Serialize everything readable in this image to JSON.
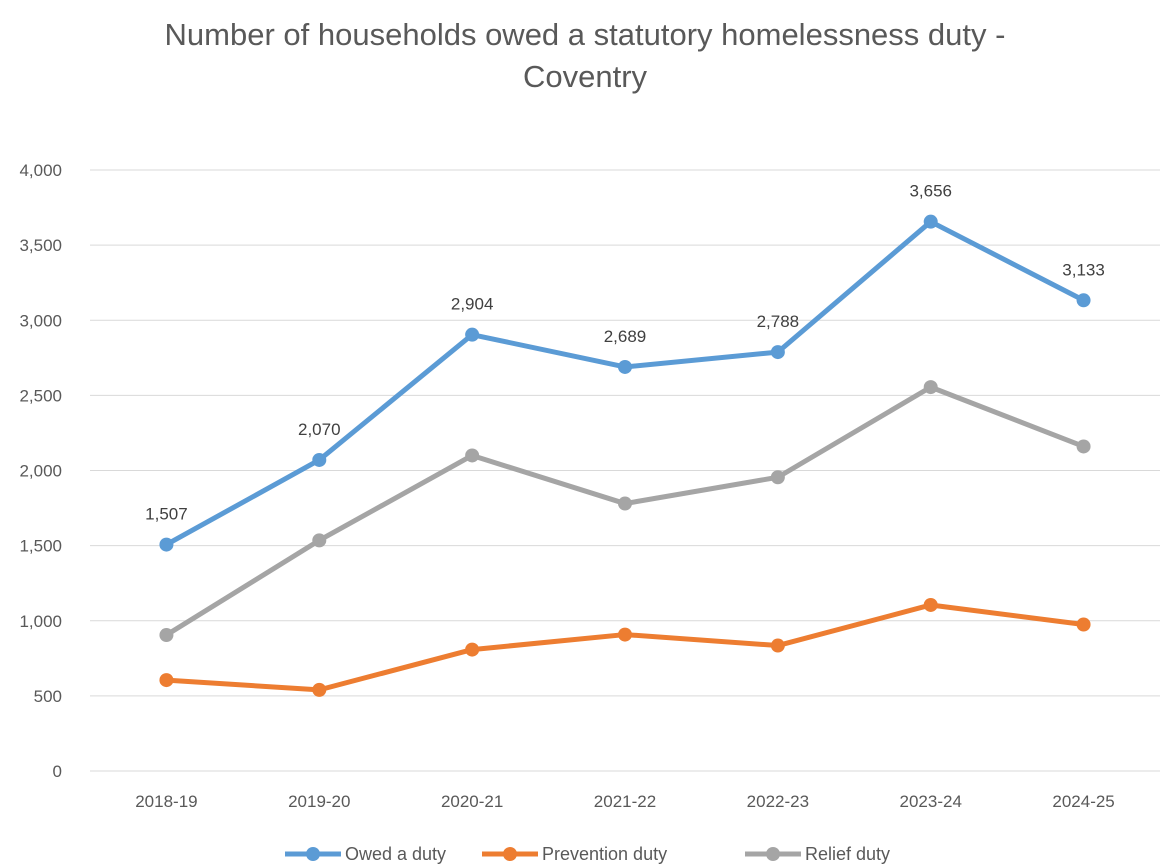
{
  "chart_data": {
    "type": "line",
    "title_line1": "Number of households owed a statutory homelessness duty -",
    "title_line2": "Coventry",
    "categories": [
      "2018-19",
      "2019-20",
      "2020-21",
      "2021-22",
      "2022-23",
      "2023-24",
      "2024-25"
    ],
    "ylim": [
      0,
      4000
    ],
    "yticks": [
      0,
      500,
      1000,
      1500,
      2000,
      2500,
      3000,
      3500,
      4000
    ],
    "ytick_labels": [
      "0",
      "500",
      "1,000",
      "1,500",
      "2,000",
      "2,500",
      "3,000",
      "3,500",
      "4,000"
    ],
    "grid": true,
    "legend_position": "bottom",
    "series": [
      {
        "name": "Owed a duty",
        "color": "#5B9BD5",
        "values": [
          1507,
          2070,
          2904,
          2689,
          2788,
          3656,
          3133
        ],
        "labels": [
          "1,507",
          "2,070",
          "2,904",
          "2,689",
          "2,788",
          "3,656",
          "3,133"
        ]
      },
      {
        "name": "Prevention duty",
        "color": "#ED7D31",
        "values": [
          605,
          540,
          808,
          908,
          835,
          1105,
          975
        ]
      },
      {
        "name": "Relief duty",
        "color": "#A5A5A5",
        "values": [
          905,
          1535,
          2100,
          1780,
          1955,
          2555,
          2160
        ]
      }
    ]
  }
}
